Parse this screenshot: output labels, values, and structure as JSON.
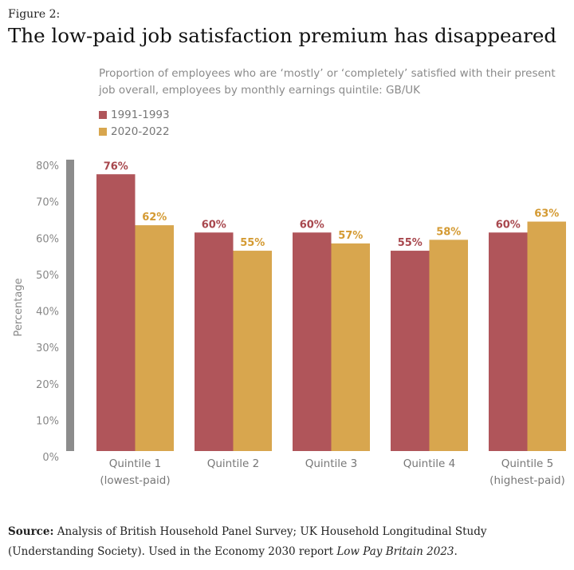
{
  "figure_label": "Figure 2:",
  "source": {
    "label": "Source:",
    "text": " Analysis of British Household Panel Survey; UK Household Longitudinal Study (Understanding Society). Used in the Economy 2030 report ",
    "italic": "Low Pay Britain 2023",
    "end": "."
  },
  "chart_data": {
    "type": "bar",
    "title": "The low-paid job satisfaction premium has disappeared",
    "subtitle": "Proportion of employees who are ‘mostly’ or ‘completely’ satisfied with their present job overall, employees by monthly earnings quintile: GB/UK",
    "categories": [
      [
        "Quintile 1",
        "(lowest-paid)"
      ],
      [
        "Quintile 2",
        ""
      ],
      [
        "Quintile 3",
        ""
      ],
      [
        "Quintile 4",
        ""
      ],
      [
        "Quintile 5",
        "(highest-paid)"
      ]
    ],
    "series": [
      {
        "name": "1991-1993",
        "color": "#b0555a",
        "label_color": "#a8474d",
        "values": [
          76,
          60,
          60,
          55,
          60
        ]
      },
      {
        "name": "2020-2022",
        "color": "#d8a64e",
        "label_color": "#d49a32",
        "values": [
          62,
          55,
          57,
          58,
          63
        ]
      }
    ],
    "xlabel": "",
    "ylabel": "Percentage",
    "ylim": [
      0,
      80
    ],
    "yticks": [
      "0%",
      "10%",
      "20%",
      "30%",
      "40%",
      "50%",
      "60%",
      "70%",
      "80%"
    ],
    "grid": false,
    "legend": "top-left",
    "axis_color": "#8c8c8c"
  }
}
